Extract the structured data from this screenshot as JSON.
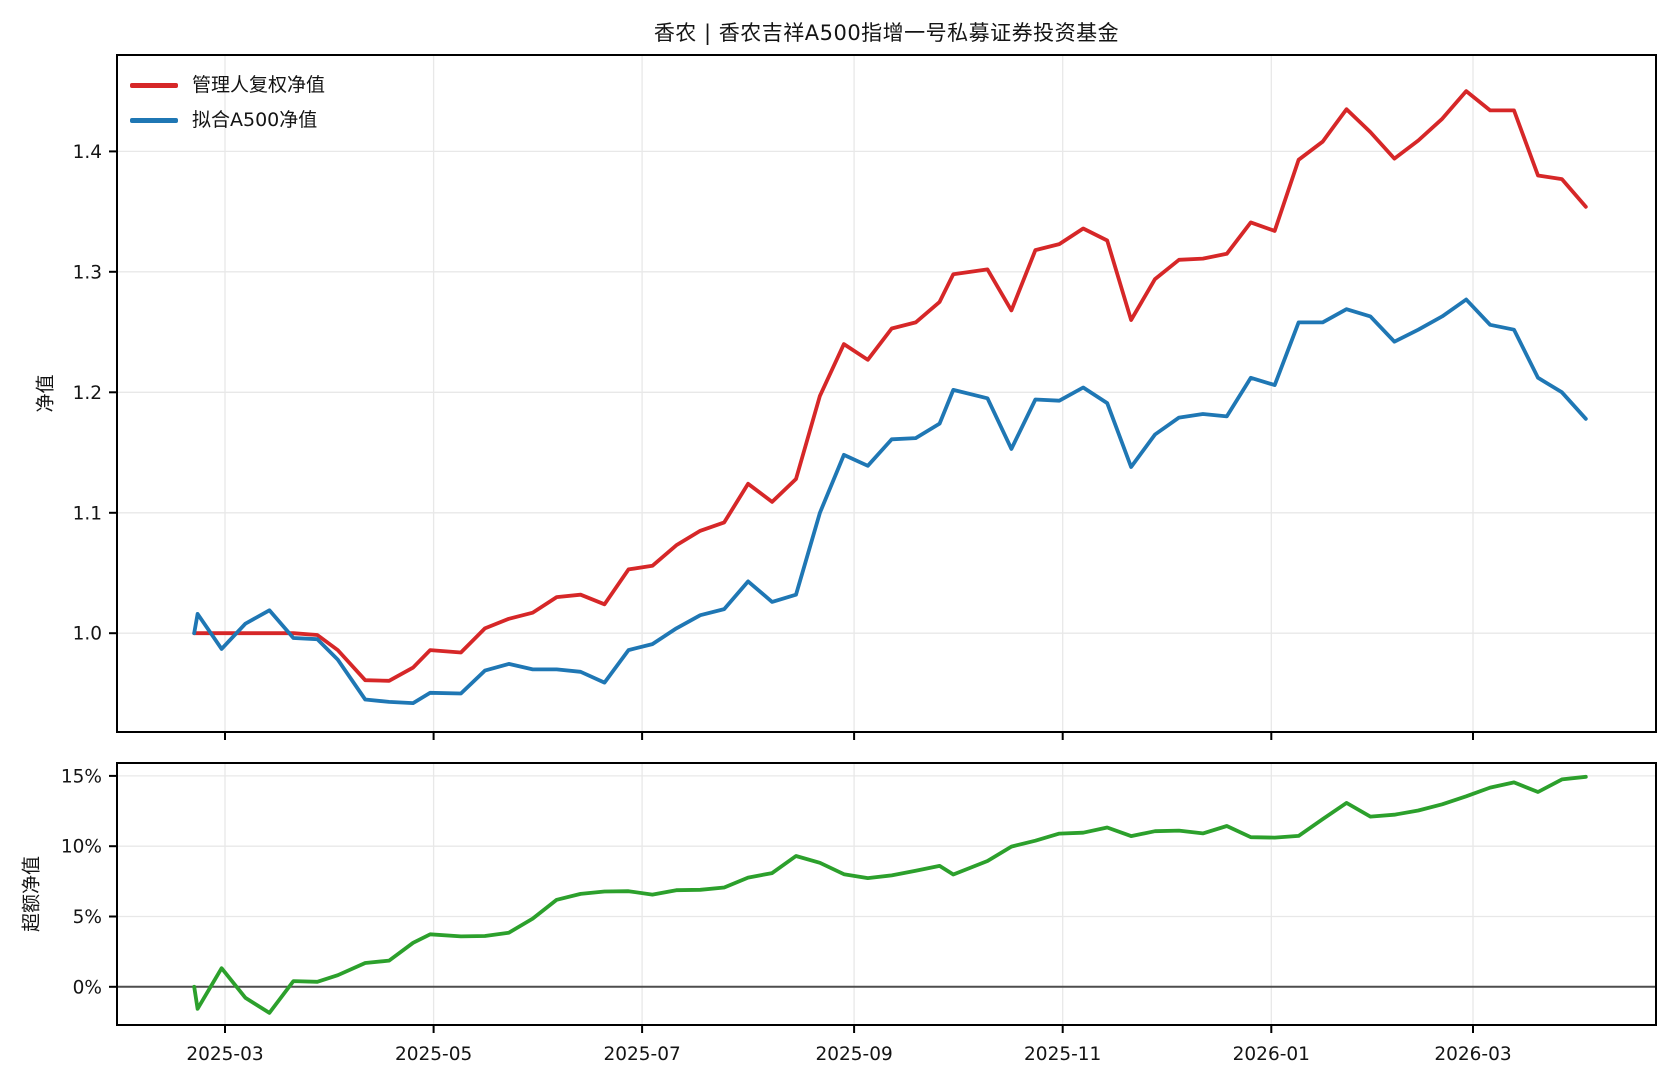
{
  "title": "香农 | 香农吉祥A500指增一号私募证券投资基金",
  "chart_data": {
    "type": "line",
    "title": "香农 | 香农吉祥A500指增一号私募证券投资基金",
    "grid": true,
    "legend_position": "upper left",
    "x_dates": [
      "2025-02-20",
      "2025-02-21",
      "2025-02-28",
      "2025-03-07",
      "2025-03-14",
      "2025-03-21",
      "2025-03-28",
      "2025-04-03",
      "2025-04-11",
      "2025-04-18",
      "2025-04-25",
      "2025-04-30",
      "2025-05-09",
      "2025-05-16",
      "2025-05-23",
      "2025-05-30",
      "2025-06-06",
      "2025-06-13",
      "2025-06-20",
      "2025-06-27",
      "2025-07-04",
      "2025-07-11",
      "2025-07-18",
      "2025-07-25",
      "2025-08-01",
      "2025-08-08",
      "2025-08-15",
      "2025-08-22",
      "2025-08-29",
      "2025-09-05",
      "2025-09-12",
      "2025-09-19",
      "2025-09-26",
      "2025-09-30",
      "2025-10-10",
      "2025-10-17",
      "2025-10-24",
      "2025-10-31",
      "2025-11-07",
      "2025-11-14",
      "2025-11-21",
      "2025-11-28",
      "2025-12-05",
      "2025-12-12",
      "2025-12-19",
      "2025-12-26",
      "2026-01-02",
      "2026-01-09",
      "2026-01-16",
      "2026-01-23",
      "2026-01-30",
      "2026-02-06",
      "2026-02-13",
      "2026-02-20",
      "2026-02-27",
      "2026-03-06",
      "2026-03-13",
      "2026-03-20",
      "2026-03-27",
      "2026-04-03"
    ],
    "x_ticks": [
      {
        "date": "2025-03-01",
        "label": "2025-03"
      },
      {
        "date": "2025-05-01",
        "label": "2025-05"
      },
      {
        "date": "2025-07-01",
        "label": "2025-07"
      },
      {
        "date": "2025-09-01",
        "label": "2025-09"
      },
      {
        "date": "2025-11-01",
        "label": "2025-11"
      },
      {
        "date": "2026-01-01",
        "label": "2026-01"
      },
      {
        "date": "2026-03-01",
        "label": "2026-03"
      }
    ],
    "panels": [
      {
        "ylabel": "净值",
        "ylim": [
          0.918,
          1.48
        ],
        "yticks": [
          {
            "value": 1.0,
            "label": "1.0"
          },
          {
            "value": 1.1,
            "label": "1.1"
          },
          {
            "value": 1.2,
            "label": "1.2"
          },
          {
            "value": 1.3,
            "label": "1.3"
          },
          {
            "value": 1.4,
            "label": "1.4"
          }
        ],
        "series": [
          {
            "name": "管理人复权净值",
            "color": "#d62728",
            "values": [
              1.0,
              1.0,
              1.0,
              1.0,
              1.0,
              1.0,
              0.9985,
              0.986,
              0.961,
              0.9605,
              0.9715,
              0.986,
              0.984,
              1.004,
              1.012,
              1.017,
              1.03,
              1.032,
              1.024,
              1.053,
              1.056,
              1.073,
              1.085,
              1.092,
              1.124,
              1.109,
              1.128,
              1.197,
              1.24,
              1.227,
              1.253,
              1.258,
              1.275,
              1.298,
              1.302,
              1.268,
              1.318,
              1.323,
              1.336,
              1.326,
              1.26,
              1.294,
              1.31,
              1.311,
              1.315,
              1.341,
              1.334,
              1.393,
              1.408,
              1.435,
              1.416,
              1.394,
              1.409,
              1.427,
              1.45,
              1.434,
              1.434,
              1.38,
              1.377,
              1.354
            ]
          },
          {
            "name": "拟合A500净值",
            "color": "#1f77b4",
            "values": [
              1.0,
              1.016,
              0.987,
              1.008,
              1.019,
              0.996,
              0.995,
              0.978,
              0.945,
              0.943,
              0.942,
              0.9505,
              0.95,
              0.969,
              0.9745,
              0.97,
              0.97,
              0.968,
              0.959,
              0.986,
              0.991,
              1.004,
              1.015,
              1.02,
              1.043,
              1.026,
              1.032,
              1.1,
              1.148,
              1.139,
              1.161,
              1.162,
              1.174,
              1.202,
              1.195,
              1.153,
              1.194,
              1.193,
              1.204,
              1.191,
              1.138,
              1.165,
              1.179,
              1.182,
              1.18,
              1.212,
              1.206,
              1.258,
              1.258,
              1.269,
              1.263,
              1.242,
              1.252,
              1.263,
              1.277,
              1.256,
              1.252,
              1.212,
              1.2,
              1.178
            ]
          }
        ]
      },
      {
        "ylabel": "超额净值",
        "ylim": [
          -2.72,
          15.92
        ],
        "zero_line": true,
        "yticks": [
          {
            "value": 0,
            "label": "0%"
          },
          {
            "value": 5,
            "label": "5%"
          },
          {
            "value": 10,
            "label": "10%"
          },
          {
            "value": 15,
            "label": "15%"
          }
        ],
        "series": [
          {
            "name": "超额净值",
            "color": "#2ca02c",
            "values": [
              0.0,
              -1.57,
              1.32,
              -0.79,
              -1.86,
              0.4,
              0.35,
              0.82,
              1.69,
              1.86,
              3.13,
              3.73,
              3.58,
              3.61,
              3.85,
              4.85,
              6.19,
              6.61,
              6.78,
              6.8,
              6.56,
              6.87,
              6.9,
              7.06,
              7.77,
              8.09,
              9.3,
              8.82,
              8.01,
              7.73,
              7.92,
              8.26,
              8.6,
              7.99,
              8.95,
              9.97,
              10.39,
              10.9,
              10.96,
              11.33,
              10.72,
              11.07,
              11.11,
              10.91,
              11.44,
              10.64,
              10.61,
              10.73,
              11.92,
              13.08,
              12.11,
              12.24,
              12.54,
              12.98,
              13.55,
              14.17,
              14.54,
              13.86,
              14.75,
              14.94
            ]
          }
        ]
      }
    ],
    "colors": {
      "manager_nav": "#d62728",
      "fitted_a500": "#1f77b4",
      "excess": "#2ca02c",
      "grid": "#e8e8e8",
      "spine": "#000000",
      "zero_line": "#4d4d4d",
      "text": "#141414"
    }
  }
}
